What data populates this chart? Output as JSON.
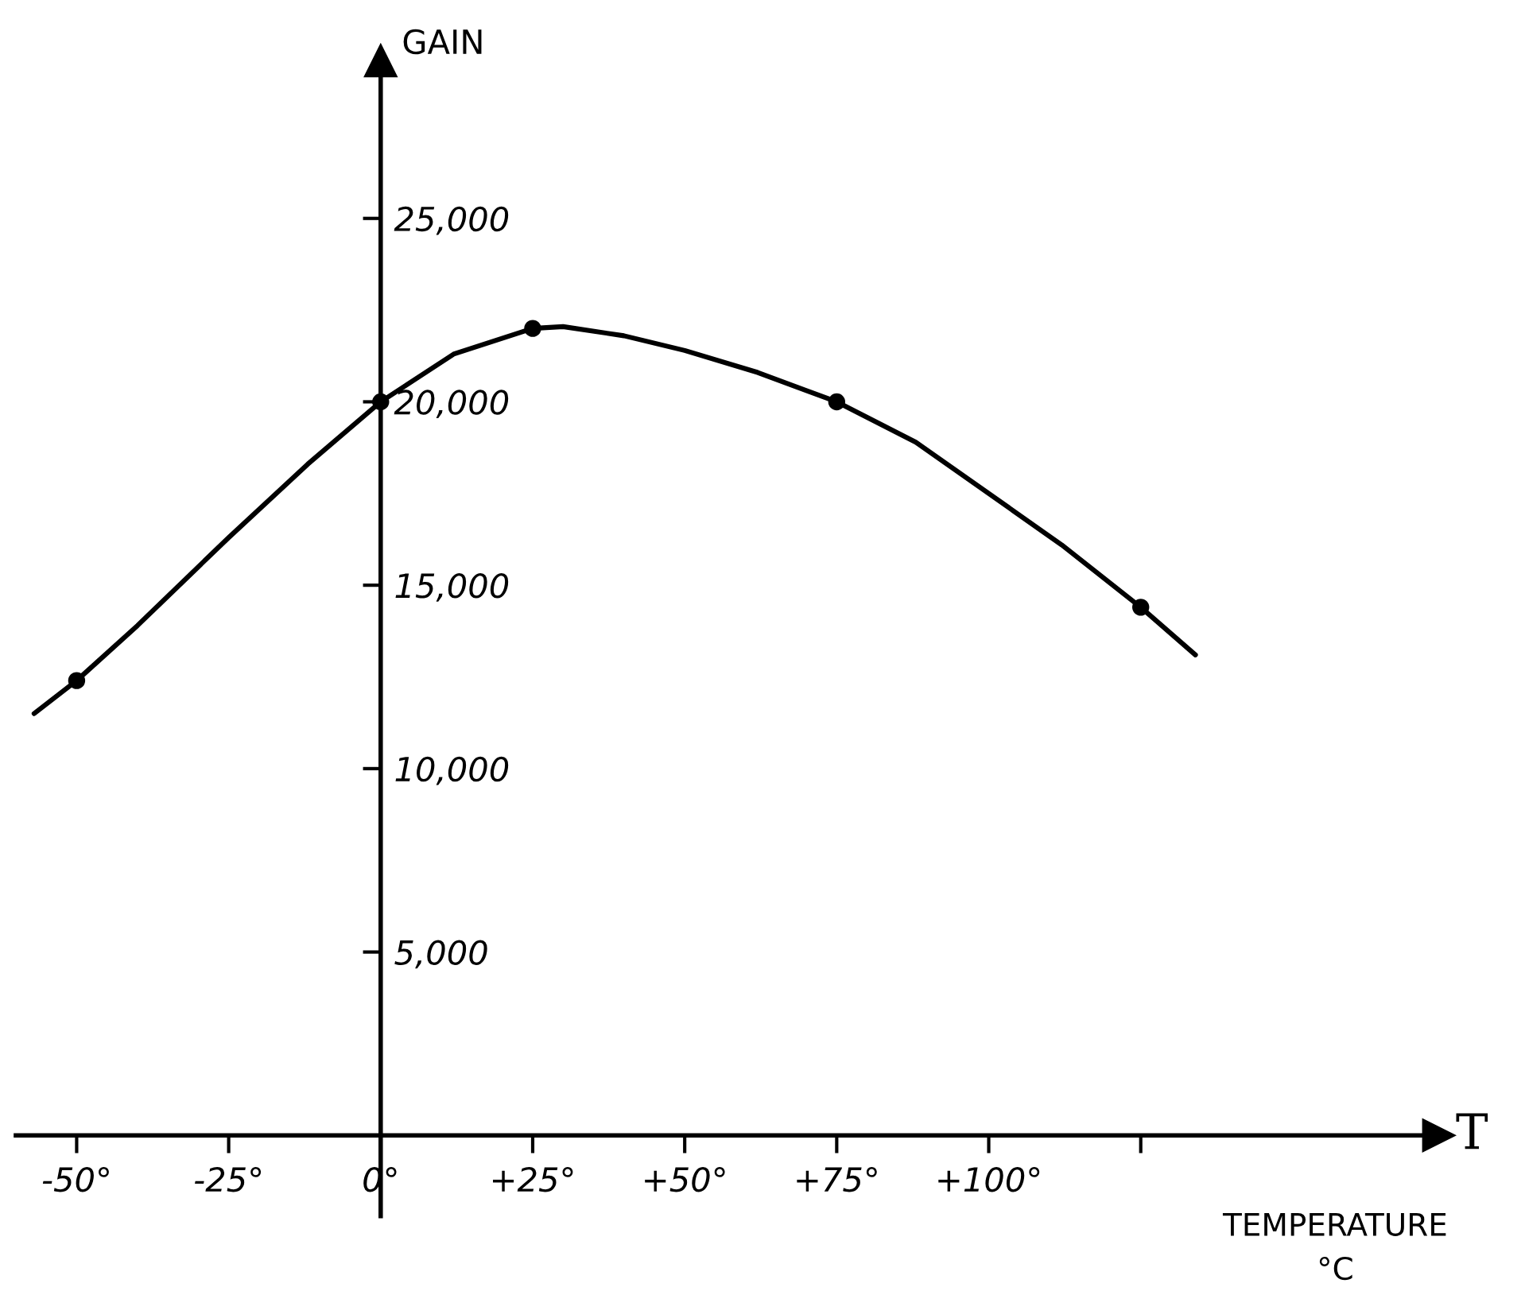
{
  "chart_data": {
    "type": "line",
    "ylabel": "GAIN",
    "xlabel": "T",
    "annotations": [
      "TEMPERATURE\n°C"
    ],
    "series": [
      {
        "type": "line",
        "color": "#000000",
        "marker": "none",
        "x": [
          -57,
          -50,
          -40,
          -25,
          -12,
          0,
          12,
          25,
          30,
          40,
          50,
          62,
          75,
          88,
          100,
          112,
          125,
          134
        ],
        "values": [
          11500,
          12400,
          13900,
          16300,
          18300,
          20000,
          21300,
          22000,
          22050,
          21800,
          21400,
          20800,
          20000,
          18900,
          17500,
          16100,
          14400,
          13100
        ]
      },
      {
        "type": "scatter",
        "color": "#000000",
        "marker": "circle",
        "x": [
          -50,
          0,
          25,
          75,
          125
        ],
        "values": [
          12400,
          20000,
          22000,
          20000,
          14400
        ]
      }
    ],
    "xlim": [
      -60,
      174
    ],
    "ylim": [
      -2200,
      29300
    ],
    "xticks": [
      {
        "value": -50,
        "label": "-50°"
      },
      {
        "value": -25,
        "label": "-25°"
      },
      {
        "value": 0,
        "label": "0°"
      },
      {
        "value": 25,
        "label": "+25°"
      },
      {
        "value": 50,
        "label": "+50°"
      },
      {
        "value": 75,
        "label": "+75°"
      },
      {
        "value": 100,
        "label": "+100°"
      },
      {
        "value": 125,
        "label": null
      }
    ],
    "yticks": [
      {
        "value": 5000,
        "label": "5,000"
      },
      {
        "value": 10000,
        "label": "10,000"
      },
      {
        "value": 15000,
        "label": "15,000"
      },
      {
        "value": 20000,
        "label": "20,000"
      },
      {
        "value": 25000,
        "label": "25,000"
      }
    ],
    "grid": false,
    "legend": false
  }
}
